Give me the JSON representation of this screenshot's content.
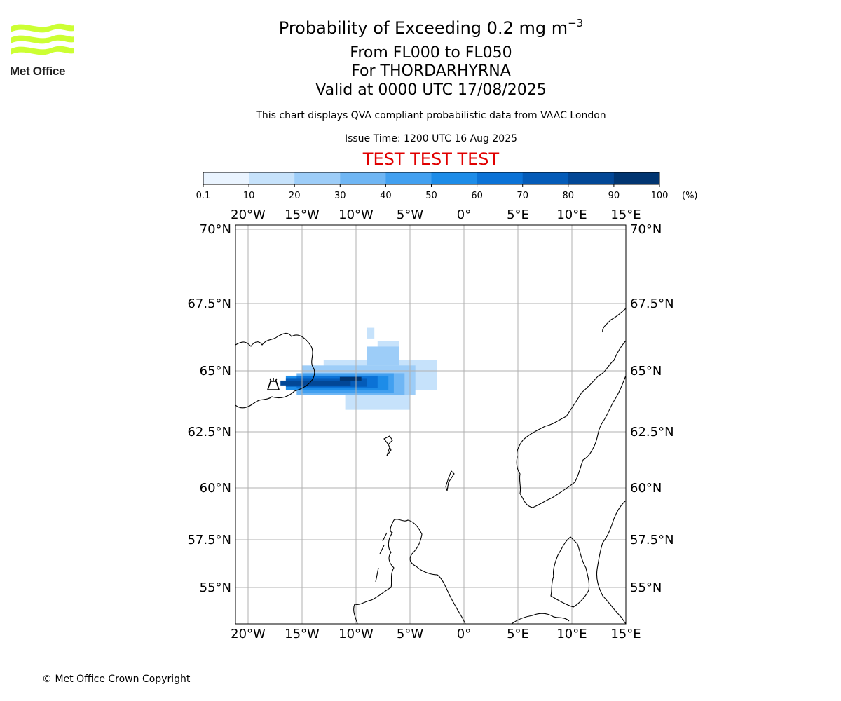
{
  "logo": {
    "text": "Met Office",
    "accent": "#ccff33"
  },
  "title": {
    "main": "Probability of Exceeding 0.2 mg m",
    "main_sup": "−3",
    "line2": "From FL000 to FL050",
    "line3": "For THORDARHYRNA",
    "line4": "Valid at 0000 UTC 17/08/2025"
  },
  "disclaimer": "This chart displays QVA compliant probabilistic data from VAAC London",
  "issue_time": "Issue Time: 1200 UTC 16 Aug 2025",
  "test_banner": "TEST TEST TEST",
  "colorbar": {
    "ticks": [
      "0.1",
      "10",
      "20",
      "30",
      "40",
      "50",
      "60",
      "70",
      "80",
      "90",
      "100"
    ],
    "unit": "(%)",
    "colors": [
      "#eaf4ff",
      "#c6e2fb",
      "#9dcdf8",
      "#6fb6f4",
      "#42a0f0",
      "#1d8ce8",
      "#0b72d6",
      "#045bb8",
      "#024796",
      "#013571"
    ]
  },
  "map": {
    "lon_labels": [
      "20°W",
      "15°W",
      "10°W",
      "5°W",
      "0°",
      "5°E",
      "10°E",
      "15°E"
    ],
    "lat_labels": [
      "70°N",
      "67.5°N",
      "65°N",
      "62.5°N",
      "60°N",
      "57.5°N",
      "55°N"
    ],
    "volcano_icon": "volcano-icon",
    "plume_levels": [
      {
        "level": 1,
        "cells": [
          [
            -13,
            64.2,
            -2.5,
            65.4
          ],
          [
            -8,
            65.4,
            -6,
            66.1
          ],
          [
            -11,
            63.4,
            -5,
            64.0
          ],
          [
            -9,
            66.2,
            -8.3,
            66.6
          ]
        ]
      },
      {
        "level": 2,
        "cells": [
          [
            -15,
            64.0,
            -4.5,
            65.2
          ],
          [
            -9,
            65.2,
            -6,
            65.9
          ]
        ]
      },
      {
        "level": 3,
        "cells": [
          [
            -15.5,
            64.0,
            -5.5,
            64.9
          ]
        ]
      },
      {
        "level": 4,
        "cells": [
          [
            -15,
            64.1,
            -6.5,
            64.9
          ]
        ]
      },
      {
        "level": 5,
        "cells": [
          [
            -16.5,
            64.2,
            -7,
            64.8
          ]
        ]
      },
      {
        "level": 6,
        "cells": [
          [
            -15.5,
            64.3,
            -8,
            64.8
          ]
        ]
      },
      {
        "level": 7,
        "cells": [
          [
            -16.5,
            64.35,
            -9,
            64.7
          ]
        ]
      },
      {
        "level": 8,
        "cells": [
          [
            -17,
            64.4,
            -10.5,
            64.6
          ]
        ]
      },
      {
        "level": 9,
        "cells": [
          [
            -11.5,
            64.6,
            -9.5,
            64.75
          ]
        ]
      }
    ]
  },
  "copyright": "© Met Office Crown Copyright"
}
